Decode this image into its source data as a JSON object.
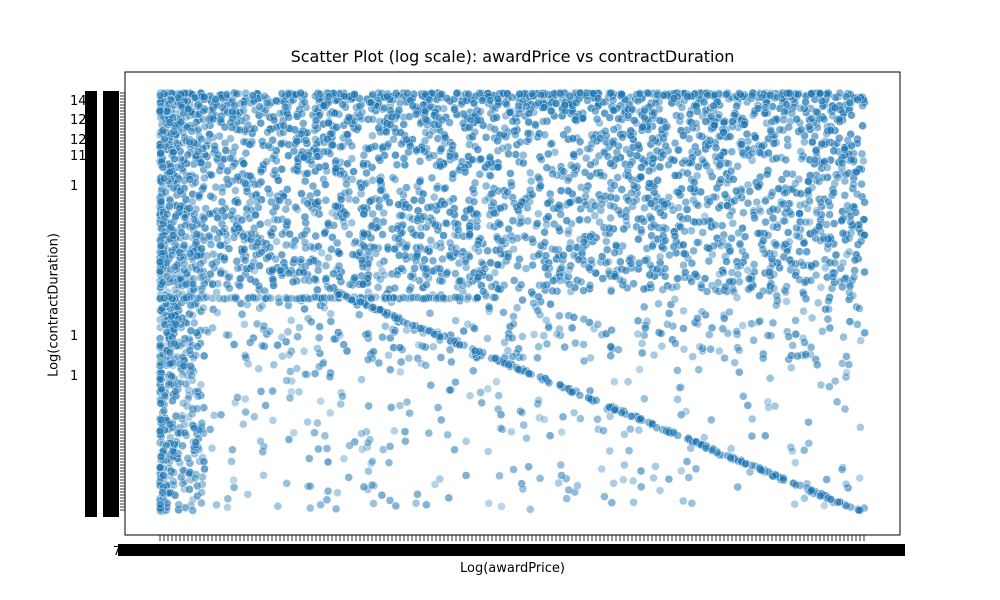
{
  "chart_data": {
    "type": "scatter",
    "title": "Scatter Plot (log scale): awardPrice vs contractDuration",
    "xlabel": "Log(awardPrice)",
    "ylabel": "Log(contractDuration)",
    "x_scale": "log (categorical ticks)",
    "y_scale": "log (categorical ticks)",
    "grid": false,
    "legend": "none",
    "marker_color": "#1f77b4",
    "marker_alpha": 0.4,
    "marker_edge_color": "#ffffff",
    "x_tick_labels_visible": [
      "7"
    ],
    "y_tick_labels_visible": [
      "14",
      "12",
      "12",
      "11",
      "1",
      "1",
      "1"
    ],
    "notes_from_image": "Thousands of overlapping tick labels render as solid black bands along both axes; points are densest near the top, with a straight descending diagonal band of points from upper-left to lower-right."
  }
}
